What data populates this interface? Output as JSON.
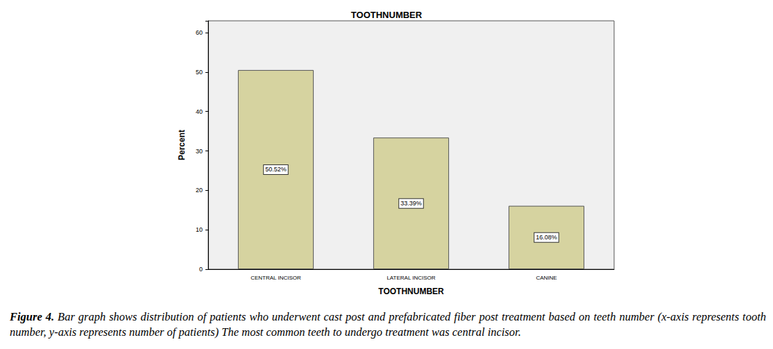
{
  "chart_data": {
    "type": "bar",
    "title": "TOOTHNUMBER",
    "x_label": "TOOTHNUMBER",
    "y_label": "Percent",
    "categories": [
      "CENTRAL INCISOR",
      "LATERAL INCISOR",
      "CANINE"
    ],
    "values": [
      50.52,
      33.39,
      16.08
    ],
    "value_labels": [
      "50.52%",
      "33.39%",
      "16.08%"
    ],
    "color": "#d6d3a0",
    "ylim": [
      0,
      63
    ],
    "yticks": [
      0,
      10,
      20,
      30,
      40,
      50,
      60
    ],
    "grid": false,
    "data_labels": true,
    "caption_label": "Figure 4.",
    "caption": "Bar graph shows distribution of patients who underwent cast post and prefabricated fiber post treatment based on teeth number (x-axis represents tooth number, y-axis represents number of patients) The most common teeth to undergo treatment was central incisor."
  }
}
